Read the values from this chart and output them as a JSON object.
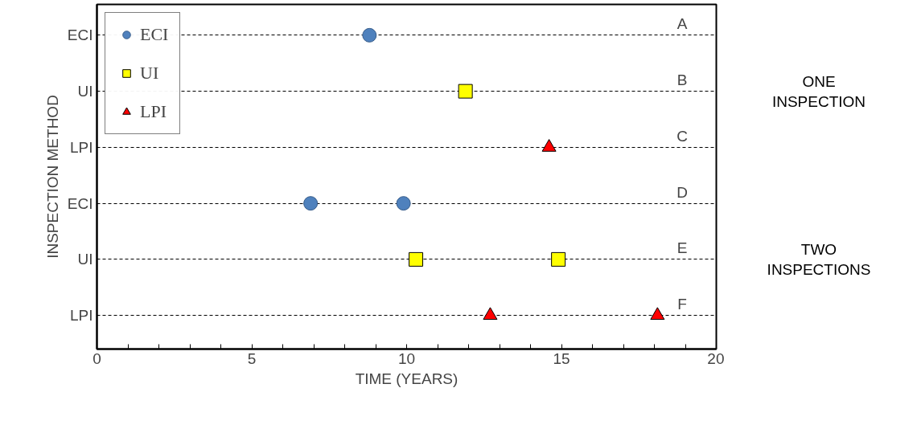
{
  "chart_data": {
    "type": "scatter",
    "orientation": "horizontal",
    "xlabel": "TIME (YEARS)",
    "ylabel": "INSPECTION METHOD",
    "categories": [
      "ECI",
      "UI",
      "LPI",
      "ECI",
      "UI",
      "LPI"
    ],
    "series": [
      {
        "name": "ECI",
        "color": "#4f81bd",
        "marker": "circle",
        "values": [
          8.8,
          null,
          null,
          6.9,
          null,
          null
        ]
      },
      {
        "name": "UI",
        "color": "#ffff00",
        "marker": "square",
        "values": [
          null,
          11.9,
          null,
          null,
          10.3,
          null
        ]
      },
      {
        "name": "LPI",
        "color": "#ff0000",
        "marker": "triangle",
        "values": [
          null,
          null,
          14.6,
          null,
          null,
          12.7
        ]
      },
      {
        "color": "#4f81bd",
        "marker": "circle",
        "values": [
          null,
          null,
          null,
          9.9,
          null,
          null
        ]
      },
      {
        "color": "#ffff00",
        "marker": "square",
        "values": [
          null,
          null,
          null,
          null,
          14.9,
          null
        ]
      },
      {
        "color": "#ff0000",
        "marker": "triangle",
        "values": [
          null,
          null,
          null,
          null,
          null,
          18.1
        ]
      }
    ],
    "xlim": [
      0,
      20
    ],
    "xticks": [
      0,
      {
        "value": 1,
        "label": null
      },
      {
        "value": 2,
        "label": null
      },
      {
        "value": 3,
        "label": null
      },
      {
        "value": 4,
        "label": null
      },
      5,
      {
        "value": 6,
        "label": null
      },
      {
        "value": 7,
        "label": null
      },
      {
        "value": 8,
        "label": null
      },
      {
        "value": 9,
        "label": null
      },
      10,
      {
        "value": 11,
        "label": null
      },
      {
        "value": 12,
        "label": null
      },
      {
        "value": 13,
        "label": null
      },
      {
        "value": 14,
        "label": null
      },
      15,
      {
        "value": 16,
        "label": null
      },
      {
        "value": 17,
        "label": null
      },
      {
        "value": 18,
        "label": null
      },
      {
        "value": 19,
        "label": null
      },
      20
    ],
    "grid": "y",
    "line_style": "dashed",
    "legend": "top left",
    "annotations": [
      "A",
      "B",
      "C",
      "D",
      "E",
      "F",
      "ONE\nINSPECTION",
      "TWO\nINSPECTIONS"
    ]
  }
}
